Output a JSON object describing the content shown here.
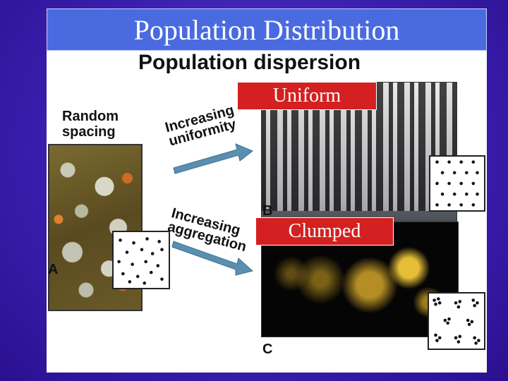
{
  "slide": {
    "title": "Population Distribution"
  },
  "figure": {
    "heading": "Population dispersion",
    "random_label_line1": "Random",
    "random_label_line2": "spacing",
    "arrow_uniform_line1": "Increasing",
    "arrow_uniform_line2": "uniformity",
    "arrow_clumped_line1": "Increasing",
    "arrow_clumped_line2": "aggregation",
    "letter_a": "A",
    "letter_b": "B",
    "letter_c": "C",
    "caption_uniform": "Uniform",
    "caption_clumped": "Clumped"
  },
  "colors": {
    "background": "#3a1fb0",
    "title_bar": "#4a6be0",
    "caption_red": "#d42020",
    "arrow": "#5b8fb0"
  }
}
